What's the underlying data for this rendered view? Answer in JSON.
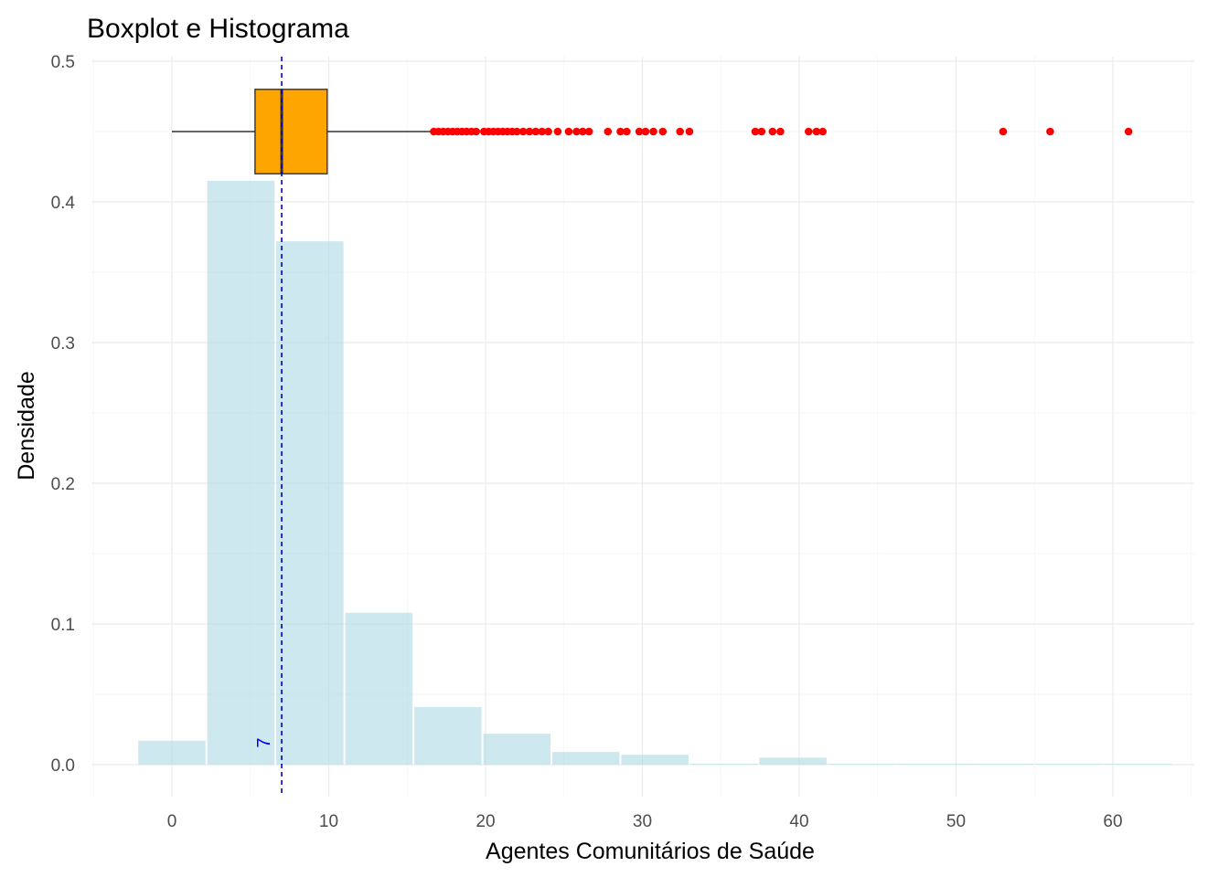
{
  "chart_data": {
    "type": "histogram+boxplot",
    "title": "Boxplot e Histograma",
    "xlabel": "Agentes Comunitários de Saúde",
    "ylabel": "Densidade",
    "xlim": [
      -5,
      65
    ],
    "ylim": [
      -0.02,
      0.5
    ],
    "x_ticks": [
      0,
      10,
      20,
      30,
      40,
      50,
      60
    ],
    "x_tick_labels": [
      "0",
      "10",
      "20",
      "30",
      "40",
      "50",
      "60"
    ],
    "y_ticks": [
      0.0,
      0.1,
      0.2,
      0.3,
      0.4,
      0.5
    ],
    "y_tick_labels": [
      "0.0",
      "0.1",
      "0.2",
      "0.3",
      "0.4",
      "0.5"
    ],
    "grid": true,
    "histogram": {
      "fill_color": "#add8e6",
      "bins": [
        {
          "x0": -2.2,
          "x1": 2.2,
          "density": 0.017
        },
        {
          "x0": 2.2,
          "x1": 6.6,
          "density": 0.415
        },
        {
          "x0": 6.6,
          "x1": 11.0,
          "density": 0.372
        },
        {
          "x0": 11.0,
          "x1": 15.4,
          "density": 0.108
        },
        {
          "x0": 15.4,
          "x1": 19.8,
          "density": 0.041
        },
        {
          "x0": 19.8,
          "x1": 24.2,
          "density": 0.022
        },
        {
          "x0": 24.2,
          "x1": 28.6,
          "density": 0.009
        },
        {
          "x0": 28.6,
          "x1": 33.0,
          "density": 0.007
        },
        {
          "x0": 33.0,
          "x1": 37.4,
          "density": 0.0
        },
        {
          "x0": 37.4,
          "x1": 41.8,
          "density": 0.005
        },
        {
          "x0": 41.8,
          "x1": 46.2,
          "density": 0.0
        },
        {
          "x0": 46.2,
          "x1": 50.6,
          "density": 0.0
        },
        {
          "x0": 50.6,
          "x1": 55.0,
          "density": 0.0005
        },
        {
          "x0": 55.0,
          "x1": 59.4,
          "density": 0.0005
        },
        {
          "x0": 59.4,
          "x1": 63.8,
          "density": 0.0005
        }
      ]
    },
    "boxplot": {
      "y": 0.45,
      "box_bottom": 0.42,
      "box_top": 0.48,
      "whisker_low": 0,
      "q1": 5.3,
      "median": 7,
      "q3": 9.9,
      "whisker_high": 16.5,
      "box_color": "#ffa500",
      "outlier_color": "#ff0000",
      "outliers": [
        16.7,
        17.0,
        17.3,
        17.6,
        17.9,
        18.2,
        18.5,
        18.8,
        19.1,
        19.4,
        19.9,
        20.2,
        20.5,
        20.8,
        21.1,
        21.4,
        21.7,
        22.0,
        22.4,
        22.8,
        23.2,
        23.6,
        24.0,
        24.6,
        25.3,
        25.8,
        26.2,
        26.6,
        27.8,
        28.6,
        29.0,
        29.8,
        30.2,
        30.7,
        31.3,
        32.4,
        33.0,
        37.2,
        37.6,
        38.3,
        38.8,
        40.6,
        41.1,
        41.5,
        53.0,
        56.0,
        61.0
      ]
    },
    "vline": {
      "x": 7,
      "color": "#0000cd",
      "style": "dashed",
      "label": "7"
    }
  }
}
